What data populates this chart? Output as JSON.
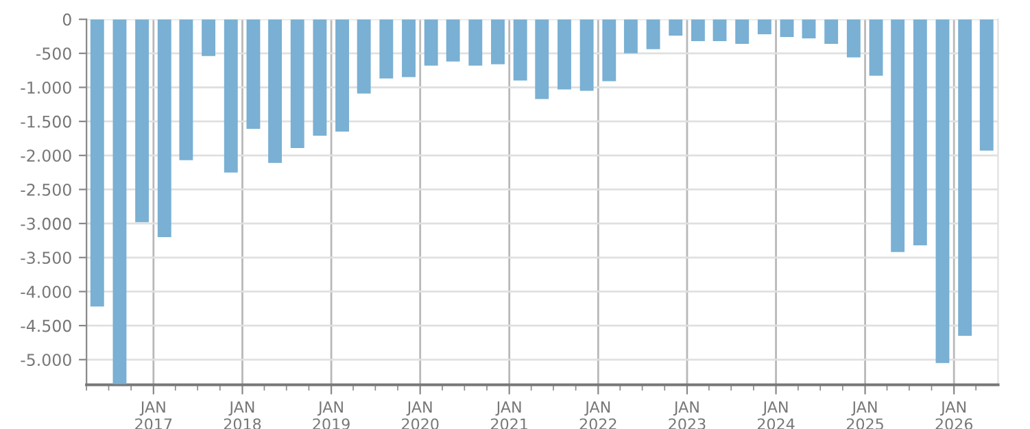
{
  "chart_data": {
    "type": "bar",
    "x": [
      "2016-05-15",
      "2016-08-15",
      "2016-11-15",
      "2017-02-15",
      "2017-05-15",
      "2017-08-15",
      "2017-11-15",
      "2018-02-15",
      "2018-05-15",
      "2018-08-15",
      "2018-11-15",
      "2019-02-15",
      "2019-05-15",
      "2019-08-15",
      "2019-11-15",
      "2020-02-15",
      "2020-05-15",
      "2020-08-15",
      "2020-11-15",
      "2021-02-15",
      "2021-05-15",
      "2021-08-15",
      "2021-11-15",
      "2022-02-15",
      "2022-05-15",
      "2022-08-15",
      "2022-11-15",
      "2023-02-15",
      "2023-05-15",
      "2023-08-15",
      "2023-11-15",
      "2024-02-15",
      "2024-05-15",
      "2024-08-15",
      "2024-11-15",
      "2025-02-15",
      "2025-05-15",
      "2025-08-15",
      "2025-11-15",
      "2026-02-15",
      "2026-05-15"
    ],
    "values": [
      -4220,
      -5360,
      -2980,
      -3200,
      -2070,
      -540,
      -2250,
      -1610,
      -2110,
      -1890,
      -1710,
      -1650,
      -1090,
      -870,
      -850,
      -680,
      -620,
      -680,
      -660,
      -900,
      -1170,
      -1030,
      -1050,
      -910,
      -500,
      -440,
      -240,
      -320,
      -320,
      -360,
      -220,
      -260,
      -280,
      -360,
      -560,
      -830,
      -3420,
      -3320,
      -5050,
      -4650,
      -1930
    ],
    "color": "#79b0d3",
    "xlim": [
      "2016-04-01",
      "2026-07-01"
    ],
    "xticks": [
      {
        "value": "2016-04-01",
        "label": null
      },
      {
        "value": "2016-07-01",
        "label": null
      },
      {
        "value": "2016-10-01",
        "label": null
      },
      {
        "value": "2017-01-01",
        "label": "JAN\n2017"
      },
      {
        "value": "2017-04-01",
        "label": null
      },
      {
        "value": "2017-07-01",
        "label": null
      },
      {
        "value": "2017-10-01",
        "label": null
      },
      {
        "value": "2018-01-01",
        "label": "JAN\n2018"
      },
      {
        "value": "2018-04-01",
        "label": null
      },
      {
        "value": "2018-07-01",
        "label": null
      },
      {
        "value": "2018-10-01",
        "label": null
      },
      {
        "value": "2019-01-01",
        "label": "JAN\n2019"
      },
      {
        "value": "2019-04-01",
        "label": null
      },
      {
        "value": "2019-07-01",
        "label": null
      },
      {
        "value": "2019-10-01",
        "label": null
      },
      {
        "value": "2020-01-01",
        "label": "JAN\n2020"
      },
      {
        "value": "2020-04-01",
        "label": null
      },
      {
        "value": "2020-07-01",
        "label": null
      },
      {
        "value": "2020-10-01",
        "label": null
      },
      {
        "value": "2021-01-01",
        "label": "JAN\n2021"
      },
      {
        "value": "2021-04-01",
        "label": null
      },
      {
        "value": "2021-07-01",
        "label": null
      },
      {
        "value": "2021-10-01",
        "label": null
      },
      {
        "value": "2022-01-01",
        "label": "JAN\n2022"
      },
      {
        "value": "2022-04-01",
        "label": null
      },
      {
        "value": "2022-07-01",
        "label": null
      },
      {
        "value": "2022-10-01",
        "label": null
      },
      {
        "value": "2023-01-01",
        "label": "JAN\n2023"
      },
      {
        "value": "2023-04-01",
        "label": null
      },
      {
        "value": "2023-07-01",
        "label": null
      },
      {
        "value": "2023-10-01",
        "label": null
      },
      {
        "value": "2024-01-01",
        "label": "JAN\n2024"
      },
      {
        "value": "2024-04-01",
        "label": null
      },
      {
        "value": "2024-07-01",
        "label": null
      },
      {
        "value": "2024-10-01",
        "label": null
      },
      {
        "value": "2025-01-01",
        "label": "JAN\n2025"
      },
      {
        "value": "2025-04-01",
        "label": null
      },
      {
        "value": "2025-07-01",
        "label": null
      },
      {
        "value": "2025-10-01",
        "label": null
      },
      {
        "value": "2026-01-01",
        "label": "JAN\n2026"
      },
      {
        "value": "2026-04-01",
        "label": null
      }
    ],
    "ylim": [
      -5370,
      0
    ],
    "yticks": [
      0,
      {
        "value": -500,
        "label": "-500"
      },
      {
        "value": -1000,
        "label": "-1.000"
      },
      {
        "value": -1500,
        "label": "-1.500"
      },
      {
        "value": -2000,
        "label": "-2.000"
      },
      {
        "value": -2500,
        "label": "-2.500"
      },
      {
        "value": -3000,
        "label": "-3.000"
      },
      {
        "value": -3500,
        "label": "-3.500"
      },
      {
        "value": -4000,
        "label": "-4.000"
      },
      {
        "value": -4500,
        "label": "-4.500"
      },
      {
        "value": -5000,
        "label": "-5.000"
      }
    ],
    "grid": true,
    "legend": false
  }
}
